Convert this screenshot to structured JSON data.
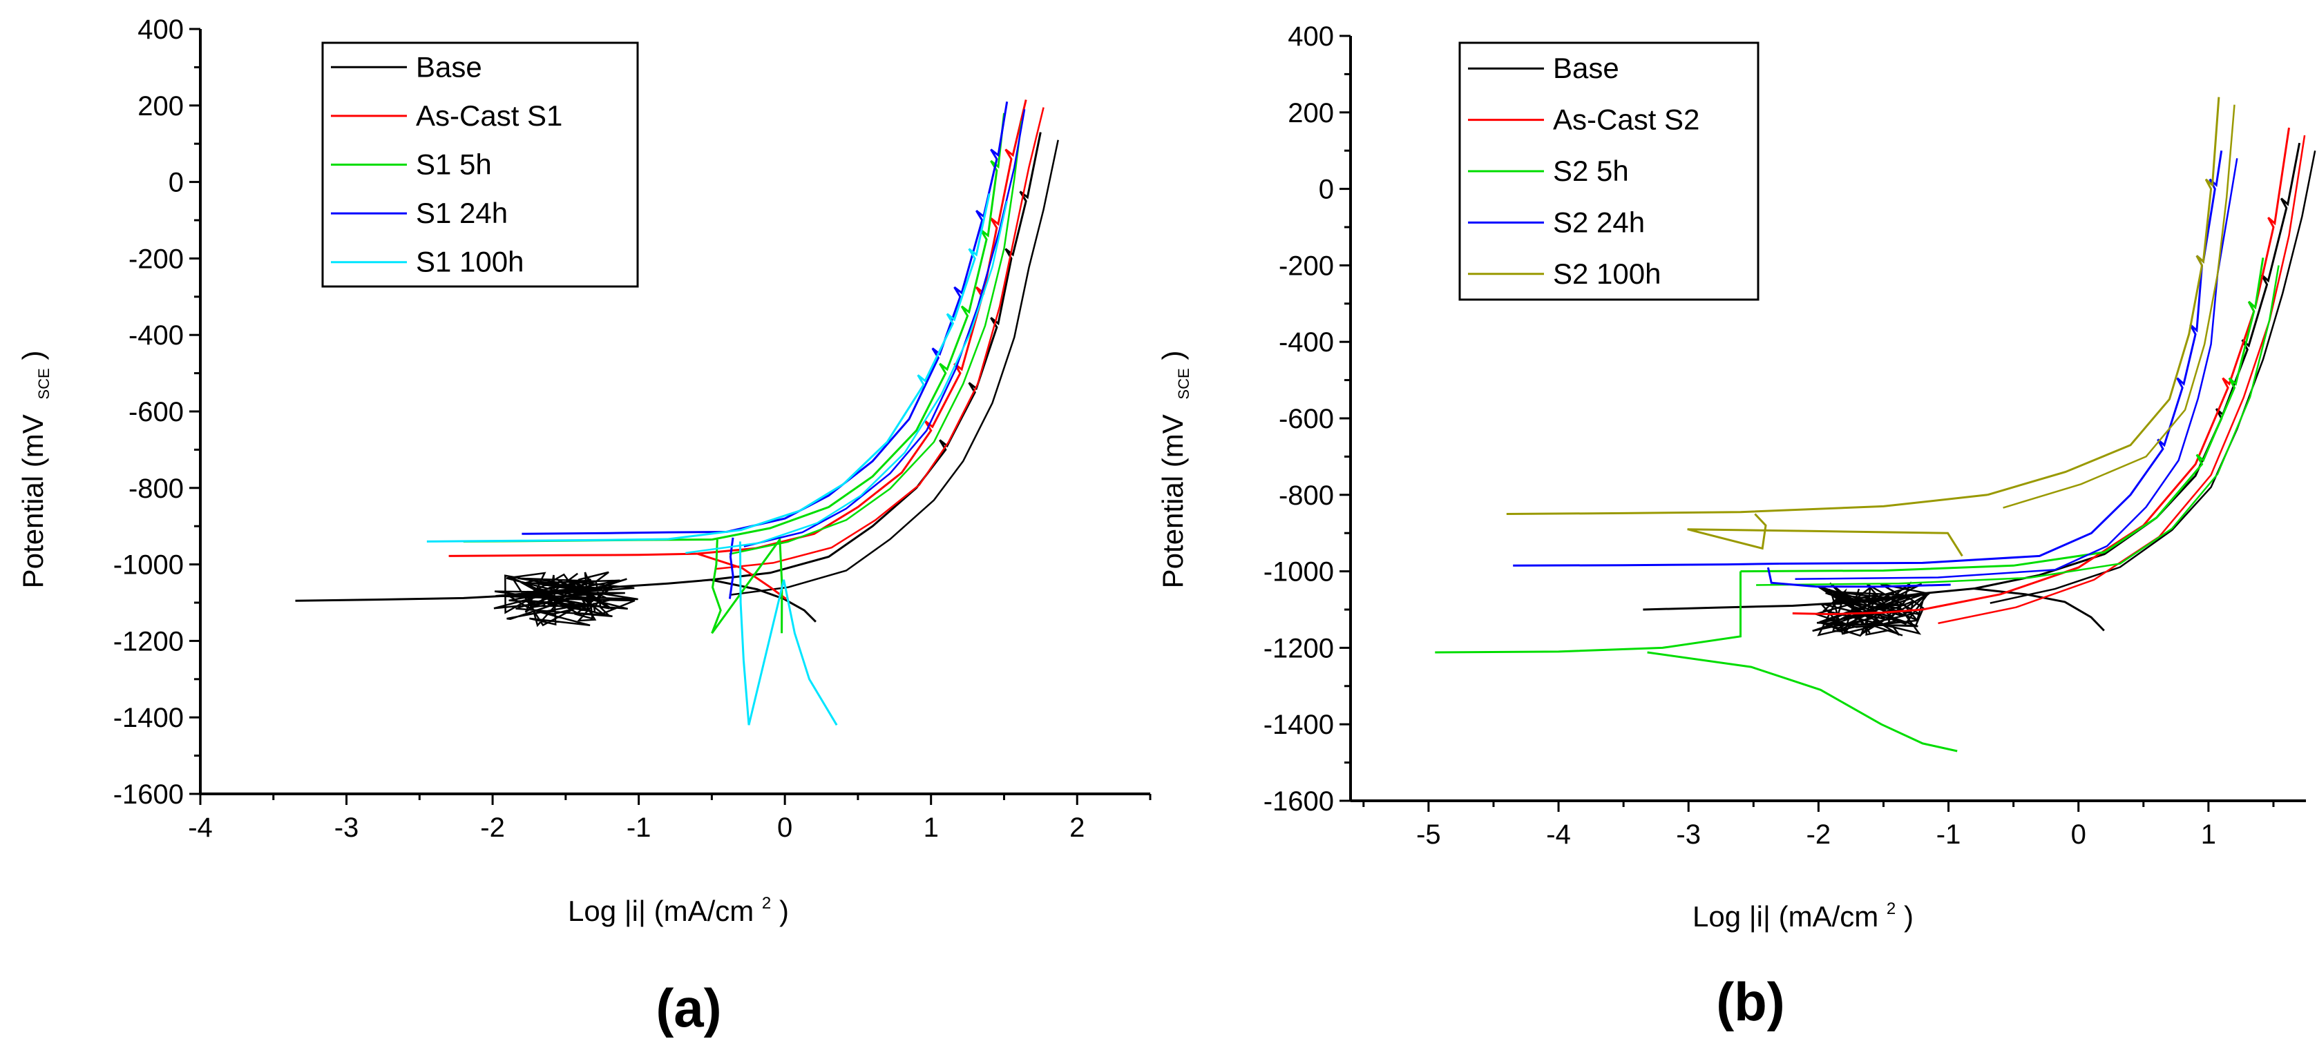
{
  "chart_data": [
    {
      "type": "line",
      "title": "",
      "panel_label": "(a)",
      "xlabel_main": "Log |i| (mA/cm",
      "xlabel_sup": "2",
      "xlabel_end": ")",
      "ylabel_main": "Potential (mV",
      "ylabel_sub": "SCE",
      "ylabel_end": ")",
      "xlim": [
        -4,
        2.5
      ],
      "ylim": [
        -1600,
        400
      ],
      "xticks": [
        -4,
        -3,
        -2,
        -1,
        0,
        1,
        2
      ],
      "yticks": [
        -1600,
        -1400,
        -1200,
        -1000,
        -800,
        -600,
        -400,
        -200,
        0,
        200,
        400
      ],
      "grid": false,
      "legend_position": "top-left",
      "series": [
        {
          "name": "Base",
          "color": "#000000",
          "cathodic": [
            [
              -3.35,
              -1095
            ],
            [
              -2.8,
              -1092
            ],
            [
              -2.2,
              -1088
            ],
            [
              -1.8,
              -1080
            ],
            [
              -1.5,
              -1070
            ],
            [
              -1.2,
              -1060
            ],
            [
              -0.8,
              -1050
            ],
            [
              -0.5,
              -1040
            ]
          ],
          "anodic": [
            [
              -0.5,
              -1040
            ],
            [
              -0.1,
              -1022
            ],
            [
              0.3,
              -980
            ],
            [
              0.6,
              -900
            ],
            [
              0.9,
              -800
            ],
            [
              1.1,
              -700
            ],
            [
              1.3,
              -550
            ],
            [
              1.45,
              -380
            ],
            [
              1.55,
              -200
            ],
            [
              1.65,
              -50
            ],
            [
              1.75,
              130
            ]
          ],
          "tail": [
            [
              -0.5,
              -1040
            ],
            [
              -0.2,
              -1065
            ],
            [
              0.0,
              -1090
            ],
            [
              0.12,
              -1120
            ],
            [
              0.22,
              -1150
            ]
          ],
          "noise": {
            "center": -1.5,
            "spread": 0.5,
            "base": -1090,
            "amp": 70
          }
        },
        {
          "name": "As-Cast S1",
          "color": "#ff0000",
          "cathodic": [
            [
              -2.3,
              -978
            ],
            [
              -1.5,
              -976
            ],
            [
              -1.0,
              -975
            ],
            [
              -0.6,
              -972
            ]
          ],
          "anodic": [
            [
              -0.6,
              -972
            ],
            [
              -0.2,
              -958
            ],
            [
              0.2,
              -920
            ],
            [
              0.5,
              -850
            ],
            [
              0.8,
              -760
            ],
            [
              1.0,
              -650
            ],
            [
              1.2,
              -500
            ],
            [
              1.35,
              -300
            ],
            [
              1.45,
              -120
            ],
            [
              1.55,
              60
            ],
            [
              1.65,
              215
            ]
          ],
          "tail": [
            [
              -0.6,
              -972
            ],
            [
              -0.3,
              -1010
            ],
            [
              -0.1,
              -1060
            ],
            [
              0.0,
              -1090
            ]
          ],
          "noise": null
        },
        {
          "name": "S1 5h",
          "color": "#00dd00",
          "cathodic": [
            [
              -2.2,
              -940
            ],
            [
              -1.5,
              -938
            ],
            [
              -1.0,
              -936
            ],
            [
              -0.5,
              -935
            ]
          ],
          "anodic": [
            [
              -0.5,
              -935
            ],
            [
              -0.1,
              -905
            ],
            [
              0.3,
              -850
            ],
            [
              0.6,
              -770
            ],
            [
              0.9,
              -650
            ],
            [
              1.1,
              -500
            ],
            [
              1.25,
              -350
            ],
            [
              1.38,
              -150
            ],
            [
              1.45,
              30
            ],
            [
              1.5,
              180
            ]
          ],
          "tail": [
            [
              -0.47,
              -935
            ],
            [
              -0.46,
              -1000
            ],
            [
              -0.48,
              -1060
            ],
            [
              -0.45,
              -1120
            ],
            [
              -0.48,
              -1180
            ],
            [
              -0.02,
              -935
            ],
            [
              -0.02,
              -1050
            ],
            [
              -0.02,
              -1180
            ]
          ],
          "noise": null
        },
        {
          "name": "S1 24h",
          "color": "#0000ff",
          "cathodic": [
            [
              -1.8,
              -920
            ],
            [
              -1.2,
              -918
            ],
            [
              -0.8,
              -916
            ],
            [
              -0.4,
              -915
            ]
          ],
          "anodic": [
            [
              -0.4,
              -915
            ],
            [
              0.0,
              -880
            ],
            [
              0.3,
              -820
            ],
            [
              0.6,
              -730
            ],
            [
              0.85,
              -620
            ],
            [
              1.05,
              -460
            ],
            [
              1.2,
              -300
            ],
            [
              1.35,
              -100
            ],
            [
              1.45,
              60
            ],
            [
              1.52,
              210
            ]
          ],
          "tail": [
            [
              -0.35,
              -930
            ],
            [
              -0.38,
              -980
            ],
            [
              -0.36,
              -1030
            ],
            [
              -0.38,
              -1090
            ]
          ],
          "noise": null
        },
        {
          "name": "S1 100h",
          "color": "#00e5ff",
          "cathodic": [
            [
              -2.45,
              -940
            ],
            [
              -1.8,
              -938
            ],
            [
              -1.2,
              -936
            ],
            [
              -0.8,
              -934
            ]
          ],
          "anodic": [
            [
              -0.8,
              -934
            ],
            [
              -0.3,
              -910
            ],
            [
              0.1,
              -860
            ],
            [
              0.4,
              -790
            ],
            [
              0.7,
              -680
            ],
            [
              0.95,
              -530
            ],
            [
              1.15,
              -370
            ],
            [
              1.3,
              -200
            ],
            [
              1.4,
              -30
            ]
          ],
          "tail": [
            [
              -0.3,
              -940
            ],
            [
              -0.3,
              -1100
            ],
            [
              -0.28,
              -1250
            ],
            [
              -0.25,
              -1420
            ],
            [
              0.0,
              -1040
            ],
            [
              0.05,
              -1180
            ],
            [
              0.15,
              -1300
            ],
            [
              0.35,
              -1420
            ]
          ],
          "noise": null
        }
      ]
    },
    {
      "type": "line",
      "title": "",
      "panel_label": "(b)",
      "xlabel_main": "Log |i| (mA/cm",
      "xlabel_sup": "2",
      "xlabel_end": ")",
      "ylabel_main": "Potential (mV",
      "ylabel_sub": "SCE",
      "ylabel_end": ")",
      "xlim": [
        -5.6,
        1.75
      ],
      "ylim": [
        -1600,
        400
      ],
      "xticks": [
        -5,
        -4,
        -3,
        -2,
        -1,
        0,
        1
      ],
      "yticks": [
        -1600,
        -1400,
        -1200,
        -1000,
        -800,
        -600,
        -400,
        -200,
        0,
        200,
        400
      ],
      "grid": false,
      "legend_position": "top-left",
      "series": [
        {
          "name": "Base",
          "color": "#000000",
          "cathodic": [
            [
              -3.35,
              -1100
            ],
            [
              -2.8,
              -1095
            ],
            [
              -2.2,
              -1090
            ],
            [
              -1.8,
              -1082
            ],
            [
              -1.5,
              -1070
            ],
            [
              -1.2,
              -1058
            ],
            [
              -0.8,
              -1045
            ]
          ],
          "anodic": [
            [
              -0.8,
              -1045
            ],
            [
              -0.3,
              -1010
            ],
            [
              0.2,
              -955
            ],
            [
              0.6,
              -860
            ],
            [
              0.9,
              -750
            ],
            [
              1.1,
              -600
            ],
            [
              1.3,
              -420
            ],
            [
              1.45,
              -250
            ],
            [
              1.6,
              -50
            ],
            [
              1.7,
              120
            ]
          ],
          "tail": [
            [
              -0.8,
              -1045
            ],
            [
              -0.4,
              -1060
            ],
            [
              -0.1,
              -1080
            ],
            [
              0.1,
              -1120
            ],
            [
              0.2,
              -1155
            ]
          ],
          "noise": {
            "center": -1.6,
            "spread": 0.45,
            "base": -1100,
            "amp": 70
          }
        },
        {
          "name": "As-Cast S2",
          "color": "#ff0000",
          "cathodic": [
            [
              -2.2,
              -1110
            ],
            [
              -1.9,
              -1112
            ],
            [
              -1.5,
              -1108
            ],
            [
              -1.2,
              -1100
            ]
          ],
          "anodic": [
            [
              -1.2,
              -1100
            ],
            [
              -0.6,
              -1060
            ],
            [
              0.0,
              -990
            ],
            [
              0.5,
              -880
            ],
            [
              0.9,
              -720
            ],
            [
              1.15,
              -520
            ],
            [
              1.35,
              -320
            ],
            [
              1.5,
              -100
            ],
            [
              1.62,
              160
            ]
          ],
          "tail": null,
          "noise": null
        },
        {
          "name": "S2 5h",
          "color": "#00dd00",
          "cathodic": [
            [
              -4.95,
              -1212
            ],
            [
              -4.0,
              -1210
            ],
            [
              -3.2,
              -1200
            ],
            [
              -2.6,
              -1170
            ],
            [
              -2.6,
              -1000
            ]
          ],
          "anodic": [
            [
              -2.6,
              -1000
            ],
            [
              -1.5,
              -998
            ],
            [
              -0.5,
              -985
            ],
            [
              0.2,
              -950
            ],
            [
              0.6,
              -860
            ],
            [
              0.95,
              -720
            ],
            [
              1.2,
              -520
            ],
            [
              1.35,
              -320
            ],
            [
              1.42,
              -180
            ]
          ],
          "tail": [
            [
              -3.3,
              -1212
            ],
            [
              -2.5,
              -1250
            ],
            [
              -2.0,
              -1310
            ],
            [
              -1.5,
              -1400
            ],
            [
              -1.2,
              -1450
            ],
            [
              -0.95,
              -1470
            ]
          ],
          "noise": null
        },
        {
          "name": "S2 24h",
          "color": "#0000ff",
          "cathodic": [
            [
              -4.35,
              -985
            ],
            [
              -3.5,
              -984
            ],
            [
              -2.7,
              -982
            ],
            [
              -2.3,
              -980
            ]
          ],
          "anodic": [
            [
              -2.3,
              -980
            ],
            [
              -1.2,
              -978
            ],
            [
              -0.3,
              -960
            ],
            [
              0.1,
              -900
            ],
            [
              0.4,
              -800
            ],
            [
              0.65,
              -680
            ],
            [
              0.8,
              -520
            ],
            [
              0.9,
              -380
            ],
            [
              0.95,
              -200
            ],
            [
              1.05,
              0
            ],
            [
              1.1,
              100
            ]
          ],
          "tail": [
            [
              -2.4,
              -990
            ],
            [
              -2.35,
              -1030
            ],
            [
              -2.0,
              -1040
            ],
            [
              -1.5,
              -1040
            ],
            [
              -1.0,
              -1035
            ]
          ],
          "noise": null
        },
        {
          "name": "S2 100h",
          "color": "#999900",
          "cathodic": [
            [
              -4.4,
              -850
            ],
            [
              -3.5,
              -848
            ],
            [
              -2.6,
              -845
            ],
            [
              -1.5,
              -830
            ],
            [
              -0.7,
              -800
            ]
          ],
          "anodic": [
            [
              -0.7,
              -800
            ],
            [
              -0.1,
              -740
            ],
            [
              0.4,
              -670
            ],
            [
              0.7,
              -550
            ],
            [
              0.85,
              -380
            ],
            [
              0.95,
              -200
            ],
            [
              1.02,
              0
            ],
            [
              1.08,
              240
            ]
          ],
          "tail": [
            [
              -2.5,
              -850
            ],
            [
              -2.4,
              -880
            ],
            [
              -2.45,
              -940
            ],
            [
              -3.0,
              -890
            ],
            [
              -2.0,
              -895
            ],
            [
              -1.0,
              -900
            ],
            [
              -0.9,
              -960
            ]
          ],
          "noise": null
        }
      ]
    }
  ]
}
